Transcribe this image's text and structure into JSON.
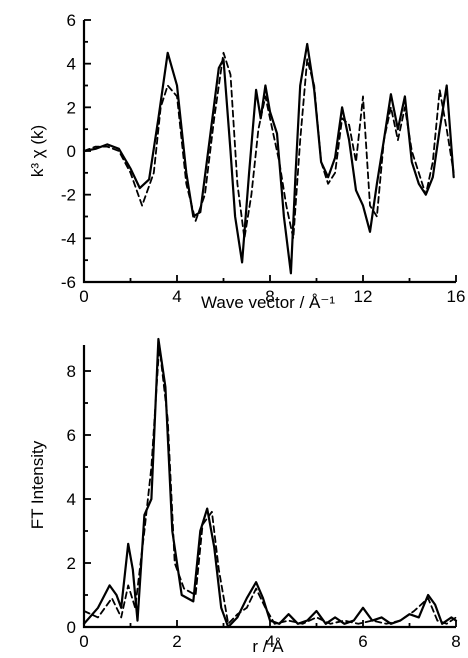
{
  "chart_data": [
    {
      "type": "line",
      "xlabel": "Wave vector / Å⁻¹",
      "ylabel": "k³ χ (k)",
      "xlim": [
        0,
        16
      ],
      "ylim": [
        -6,
        6
      ],
      "xticks": [
        "0",
        "4",
        "8",
        "12",
        "16"
      ],
      "yticks": [
        "-6",
        "-4",
        "-2",
        "0",
        "2",
        "4",
        "6"
      ],
      "series": [
        {
          "style": "solid",
          "x": [
            0,
            0.5,
            1.0,
            1.5,
            2.0,
            2.4,
            2.8,
            3.2,
            3.6,
            4.0,
            4.4,
            4.7,
            5.0,
            5.4,
            5.8,
            6.0,
            6.3,
            6.5,
            6.8,
            7.1,
            7.4,
            7.6,
            7.8,
            8.0,
            8.3,
            8.6,
            8.9,
            9.1,
            9.3,
            9.6,
            9.9,
            10.2,
            10.5,
            10.8,
            11.1,
            11.4,
            11.7,
            12.0,
            12.3,
            12.6,
            12.9,
            13.2,
            13.5,
            13.8,
            14.1,
            14.4,
            14.7,
            15.0,
            15.3,
            15.6,
            15.9
          ],
          "y": [
            0,
            0.1,
            0.3,
            0.1,
            -0.8,
            -1.7,
            -1.3,
            1.5,
            4.5,
            3.0,
            -1.0,
            -3.0,
            -2.8,
            0.5,
            3.8,
            4.2,
            0.0,
            -3.0,
            -5.1,
            -1.0,
            2.8,
            1.5,
            3.0,
            1.8,
            0.8,
            -3.0,
            -5.6,
            -1.0,
            3.0,
            4.9,
            2.8,
            -0.5,
            -1.2,
            -0.3,
            2.0,
            0.5,
            -1.8,
            -2.5,
            -3.7,
            -1.5,
            0.5,
            2.6,
            1.0,
            2.5,
            -0.5,
            -1.5,
            -2.0,
            -1.2,
            1.0,
            3.0,
            -1.2
          ]
        },
        {
          "style": "dashed",
          "x": [
            0,
            0.5,
            1.0,
            1.5,
            2.0,
            2.5,
            3.0,
            3.3,
            3.6,
            4.0,
            4.4,
            4.8,
            5.2,
            5.6,
            6.0,
            6.3,
            6.6,
            6.9,
            7.2,
            7.5,
            7.8,
            8.1,
            8.4,
            8.7,
            9.0,
            9.3,
            9.6,
            9.9,
            10.2,
            10.5,
            10.8,
            11.1,
            11.4,
            11.7,
            12.0,
            12.3,
            12.6,
            12.9,
            13.2,
            13.5,
            13.8,
            14.1,
            14.4,
            14.7,
            15.0,
            15.3,
            15.6,
            15.9
          ],
          "y": [
            0,
            0.2,
            0.2,
            0.0,
            -1.0,
            -2.5,
            -1.0,
            2.0,
            3.0,
            2.5,
            -1.5,
            -3.2,
            -2.0,
            1.5,
            4.5,
            3.5,
            -1.5,
            -4.0,
            -2.0,
            1.0,
            2.5,
            1.0,
            -0.5,
            -2.5,
            -4.0,
            0.5,
            4.2,
            3.0,
            -0.5,
            -1.5,
            -1.0,
            1.5,
            1.2,
            -0.5,
            2.5,
            -2.5,
            -3.0,
            0.5,
            2.0,
            0.5,
            2.0,
            0.0,
            -1.0,
            -2.0,
            -0.5,
            2.8,
            1.0,
            -1.0
          ]
        }
      ]
    },
    {
      "type": "line",
      "xlabel": "r / Å",
      "ylabel": "FT Intensity",
      "xlim": [
        0,
        8
      ],
      "ylim": [
        0,
        9
      ],
      "xticks": [
        "0",
        "2",
        "4",
        "6",
        "8"
      ],
      "yticks": [
        "0",
        "2",
        "4",
        "6",
        "8"
      ],
      "series": [
        {
          "style": "solid",
          "x": [
            0,
            0.3,
            0.55,
            0.7,
            0.8,
            0.95,
            1.05,
            1.15,
            1.3,
            1.45,
            1.6,
            1.75,
            1.9,
            2.1,
            2.35,
            2.5,
            2.65,
            2.8,
            2.95,
            3.1,
            3.3,
            3.5,
            3.7,
            3.85,
            4.0,
            4.2,
            4.4,
            4.6,
            4.8,
            5.0,
            5.2,
            5.4,
            5.6,
            5.8,
            6.0,
            6.2,
            6.4,
            6.6,
            6.8,
            7.0,
            7.2,
            7.4,
            7.55,
            7.7,
            7.9,
            8.0
          ],
          "y": [
            0.1,
            0.6,
            1.3,
            1.0,
            0.6,
            2.6,
            1.8,
            0.2,
            3.5,
            4.0,
            9.0,
            7.5,
            3.0,
            1.0,
            0.8,
            3.0,
            3.7,
            2.5,
            0.6,
            0.0,
            0.3,
            0.9,
            1.4,
            0.9,
            0.2,
            0.1,
            0.4,
            0.1,
            0.2,
            0.5,
            0.1,
            0.3,
            0.1,
            0.2,
            0.6,
            0.2,
            0.3,
            0.1,
            0.2,
            0.4,
            0.3,
            1.0,
            0.7,
            0.1,
            0.3,
            0.2
          ]
        },
        {
          "style": "dashed",
          "x": [
            0,
            0.3,
            0.6,
            0.8,
            0.95,
            1.1,
            1.3,
            1.45,
            1.62,
            1.8,
            1.95,
            2.15,
            2.4,
            2.55,
            2.75,
            2.9,
            3.1,
            3.3,
            3.5,
            3.7,
            3.9,
            4.1,
            4.4,
            4.7,
            5.0,
            5.3,
            5.6,
            5.9,
            6.2,
            6.5,
            6.8,
            7.1,
            7.4,
            7.6,
            7.8,
            8.0
          ],
          "y": [
            0.5,
            0.3,
            0.9,
            0.3,
            1.3,
            0.6,
            3.0,
            5.0,
            8.8,
            6.5,
            2.0,
            1.2,
            1.0,
            3.2,
            3.6,
            1.8,
            0.1,
            0.4,
            0.6,
            1.2,
            0.6,
            0.1,
            0.2,
            0.1,
            0.3,
            0.1,
            0.2,
            0.1,
            0.2,
            0.1,
            0.2,
            0.5,
            0.9,
            0.2,
            0.1,
            0.3
          ]
        }
      ]
    }
  ]
}
